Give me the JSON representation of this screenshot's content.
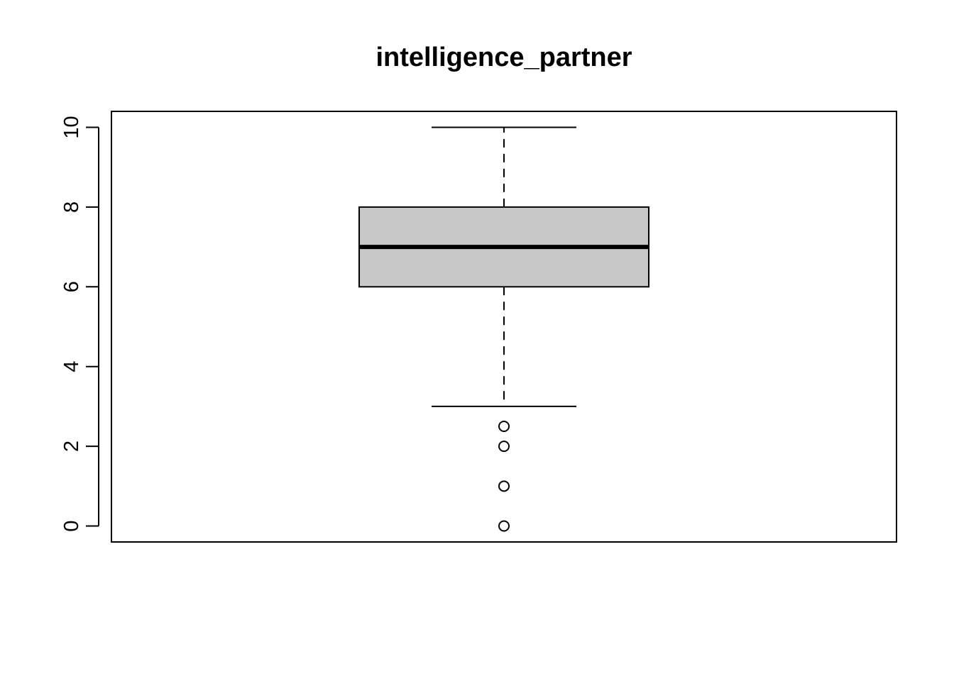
{
  "chart_data": {
    "type": "boxplot",
    "title": "intelligence_partner",
    "xlabel": "",
    "ylabel": "",
    "ylim": [
      -0.4,
      10.4
    ],
    "y_ticks": [
      0,
      2,
      4,
      6,
      8,
      10
    ],
    "y_tick_labels": [
      "0",
      "2",
      "4",
      "6",
      "8",
      "10"
    ],
    "grid": false,
    "legend": "none",
    "box": {
      "whisker_low": 3,
      "q1": 6,
      "median": 7,
      "q3": 8,
      "whisker_high": 10,
      "outliers": [
        2.5,
        2,
        1,
        0
      ]
    },
    "colors": {
      "box_fill": "#c8c8c8",
      "stroke": "#000000"
    }
  }
}
